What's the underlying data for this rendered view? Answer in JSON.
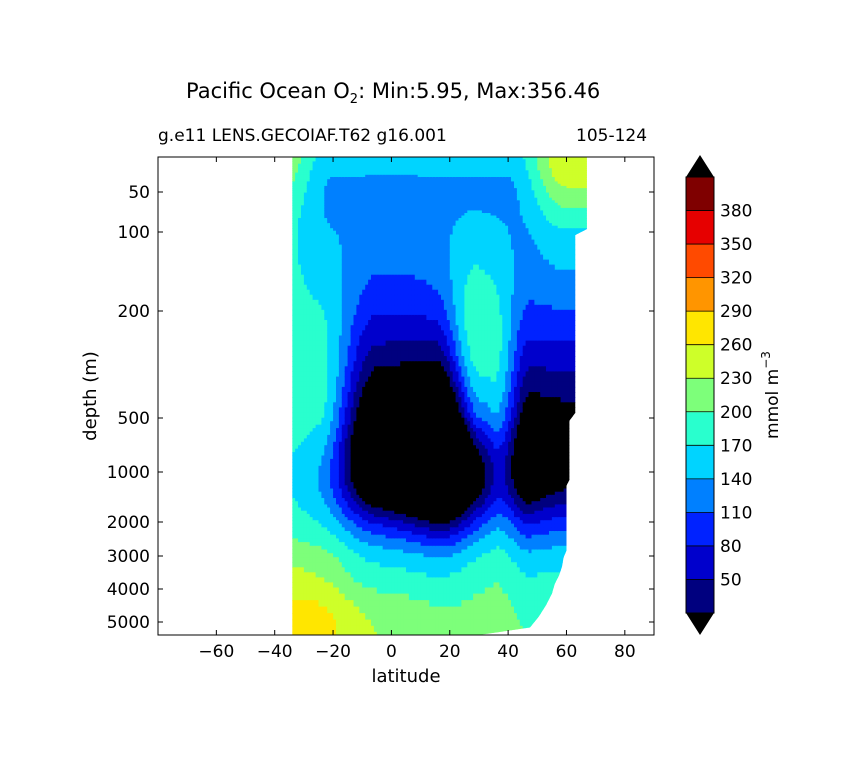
{
  "chart_data": {
    "type": "contour",
    "title_prefix": "Pacific Ocean O",
    "title_subscript": "2",
    "title_suffix": ": Min:5.95, Max:356.46",
    "left_caption": "g.e11 LENS.GECOIAF.T62 g16.001",
    "right_caption": "105-124",
    "xlabel": "latitude",
    "ylabel": "depth (m)",
    "xlim": [
      -80,
      90
    ],
    "ylim": [
      5500,
      25
    ],
    "y_scale": "piecewise-log (depth)",
    "xticks": [
      -60,
      -40,
      -20,
      0,
      20,
      40,
      60,
      80
    ],
    "yticks": [
      50,
      100,
      200,
      500,
      1000,
      2000,
      3000,
      4000,
      5000
    ],
    "colorbar": {
      "label": "mmol m",
      "label_superscript": "−3",
      "levels": [
        20,
        50,
        80,
        110,
        140,
        170,
        200,
        230,
        260,
        290,
        320,
        350,
        380
      ],
      "tick_labels": [
        50,
        80,
        110,
        140,
        170,
        200,
        230,
        260,
        290,
        320,
        350,
        380
      ],
      "colors": [
        "#00007f",
        "#0000cc",
        "#0022ff",
        "#0080ff",
        "#00d4ff",
        "#29ffce",
        "#7dff7a",
        "#ceff29",
        "#ffe600",
        "#ff9500",
        "#ff4a00",
        "#e60000",
        "#7f0000"
      ],
      "under_color": "#000000",
      "over_color": "#000000",
      "extend": "both"
    },
    "field_description": {
      "ocean_extent_latitude": [
        -34,
        68
      ],
      "min_value": 5.95,
      "max_value": 356.46
    }
  }
}
